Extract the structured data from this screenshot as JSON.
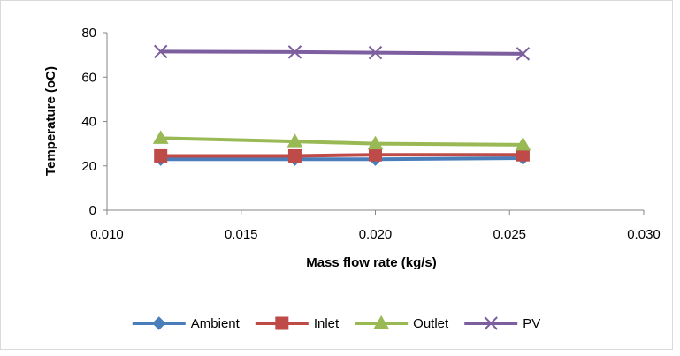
{
  "chart_data": {
    "type": "scatter",
    "title": "",
    "xlabel": "Mass flow rate (kg/s)",
    "ylabel": "Temperature (oC)",
    "xlim": [
      0.01,
      0.03
    ],
    "ylim": [
      0,
      80
    ],
    "x_ticks": [
      "0.010",
      "0.015",
      "0.020",
      "0.025",
      "0.030"
    ],
    "y_ticks": [
      "0",
      "20",
      "40",
      "60",
      "80"
    ],
    "grid": false,
    "legend_position": "bottom",
    "series": [
      {
        "name": "Ambient",
        "color": "#4A7EBB",
        "marker": "diamond",
        "x": [
          0.012,
          0.017,
          0.02,
          0.0255
        ],
        "y": [
          23.0,
          23.0,
          23.0,
          23.5
        ]
      },
      {
        "name": "Inlet",
        "color": "#BE4B48",
        "marker": "square",
        "x": [
          0.012,
          0.017,
          0.02,
          0.0255
        ],
        "y": [
          24.5,
          24.5,
          25.0,
          25.0
        ]
      },
      {
        "name": "Outlet",
        "color": "#98B954",
        "marker": "triangle",
        "x": [
          0.012,
          0.017,
          0.02,
          0.0255
        ],
        "y": [
          32.5,
          31.0,
          30.0,
          29.5
        ]
      },
      {
        "name": "PV",
        "color": "#7D5FA0",
        "marker": "x",
        "x": [
          0.012,
          0.017,
          0.02,
          0.0255
        ],
        "y": [
          71.5,
          71.3,
          71.0,
          70.5
        ]
      }
    ]
  }
}
